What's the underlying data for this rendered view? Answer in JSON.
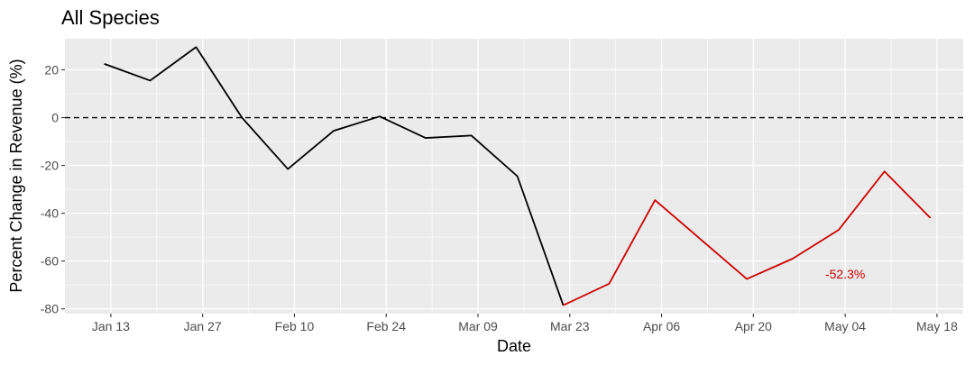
{
  "colors": {
    "panel_background": "#ebebeb",
    "grid_major": "#ffffff",
    "pre_series": "#000000",
    "post_series": "#cc0000",
    "reference_line": "#000000"
  },
  "chart_data": {
    "type": "line",
    "title": "All Species",
    "xlabel": "Date",
    "ylabel": "Percent Change in Revenue (%)",
    "x_type": "date",
    "xlim": [
      "2020-01-06",
      "2020-05-22"
    ],
    "ylim": [
      -82,
      33
    ],
    "grid": true,
    "x_ticks": [
      {
        "date": "2020-01-13",
        "label": "Jan 13"
      },
      {
        "date": "2020-01-27",
        "label": "Jan 27"
      },
      {
        "date": "2020-02-10",
        "label": "Feb 10"
      },
      {
        "date": "2020-02-24",
        "label": "Feb 24"
      },
      {
        "date": "2020-03-09",
        "label": "Mar 09"
      },
      {
        "date": "2020-03-23",
        "label": "Mar 23"
      },
      {
        "date": "2020-04-06",
        "label": "Apr 06"
      },
      {
        "date": "2020-04-20",
        "label": "Apr 20"
      },
      {
        "date": "2020-05-04",
        "label": "May 04"
      },
      {
        "date": "2020-05-18",
        "label": "May 18"
      }
    ],
    "y_ticks": [
      20,
      0,
      -20,
      -40,
      -60,
      -80
    ],
    "reference_line": {
      "y": 0,
      "style": "dashed"
    },
    "series": [
      {
        "color": "#000000",
        "points": [
          {
            "x": "2020-01-12",
            "y": 22.5
          },
          {
            "x": "2020-01-19",
            "y": 15.5
          },
          {
            "x": "2020-01-26",
            "y": 29.5
          },
          {
            "x": "2020-02-02",
            "y": 0
          },
          {
            "x": "2020-02-09",
            "y": -21.5
          },
          {
            "x": "2020-02-16",
            "y": -5.5
          },
          {
            "x": "2020-02-23",
            "y": 0.5
          },
          {
            "x": "2020-03-01",
            "y": -8.5
          },
          {
            "x": "2020-03-08",
            "y": -7.5
          },
          {
            "x": "2020-03-15",
            "y": -24.5
          },
          {
            "x": "2020-03-22",
            "y": -78.5
          }
        ]
      },
      {
        "color": "#cc0000",
        "points": [
          {
            "x": "2020-03-22",
            "y": -78.5
          },
          {
            "x": "2020-03-29",
            "y": -69.5
          },
          {
            "x": "2020-04-05",
            "y": -34.5
          },
          {
            "x": "2020-04-12",
            "y": -51
          },
          {
            "x": "2020-04-19",
            "y": -67.5
          },
          {
            "x": "2020-04-26",
            "y": -59
          },
          {
            "x": "2020-05-03",
            "y": -47
          },
          {
            "x": "2020-05-10",
            "y": -22.5
          },
          {
            "x": "2020-05-17",
            "y": -42
          }
        ]
      }
    ],
    "annotations": [
      {
        "text": "-52.3%",
        "x": "2020-05-04",
        "y": -65.5,
        "color": "#cc0000"
      }
    ]
  }
}
